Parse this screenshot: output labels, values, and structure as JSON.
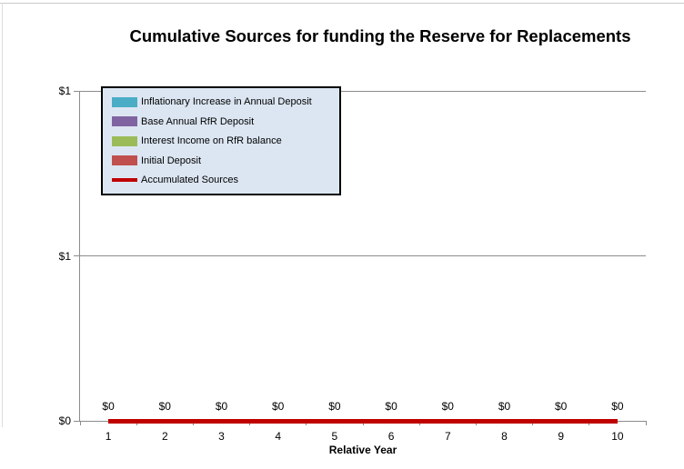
{
  "title": "Cumulative Sources for funding the Reserve for Replacements",
  "x_axis": {
    "title": "Relative Year",
    "tick_labels": [
      "1",
      "2",
      "3",
      "4",
      "5",
      "6",
      "7",
      "8",
      "9",
      "10"
    ]
  },
  "y_axis": {
    "tick_labels": [
      "$1",
      "$1",
      "$0"
    ]
  },
  "data_labels": [
    "$0",
    "$0",
    "$0",
    "$0",
    "$0",
    "$0",
    "$0",
    "$0",
    "$0",
    "$0"
  ],
  "legend": {
    "items": [
      {
        "label": "Inflationary Increase in Annual Deposit",
        "color": "#4BACC6",
        "swatch": "bar"
      },
      {
        "label": "Base Annual RfR Deposit",
        "color": "#8064A2",
        "swatch": "bar"
      },
      {
        "label": "Interest Income on RfR balance",
        "color": "#9BBB59",
        "swatch": "bar"
      },
      {
        "label": "Initial Deposit",
        "color": "#C0504D",
        "swatch": "bar"
      },
      {
        "label": "Accumulated Sources",
        "color": "#C00000",
        "swatch": "line"
      }
    ]
  },
  "colors": {
    "accumulated_line": "#C00000",
    "gridline": "#8C8C8C",
    "axis_line": "#8C8C8C",
    "legend_background": "#DCE6F2",
    "legend_border": "#000000",
    "frame_border": "#D6D6D6",
    "text": "#000000"
  },
  "chart_data": {
    "type": "line",
    "subtype": "stacked-column-with-line; all series values are zero so only the flat line at $0 is visible",
    "title": "Cumulative Sources for funding the Reserve for Replacements",
    "xlabel": "Relative Year",
    "ylabel": "",
    "categories": [
      1,
      2,
      3,
      4,
      5,
      6,
      7,
      8,
      9,
      10
    ],
    "series": [
      {
        "name": "Inflationary Increase in Annual Deposit",
        "type": "bar",
        "color": "#4BACC6",
        "values": [
          0,
          0,
          0,
          0,
          0,
          0,
          0,
          0,
          0,
          0
        ]
      },
      {
        "name": "Base Annual RfR Deposit",
        "type": "bar",
        "color": "#8064A2",
        "values": [
          0,
          0,
          0,
          0,
          0,
          0,
          0,
          0,
          0,
          0
        ]
      },
      {
        "name": "Interest Income on RfR balance",
        "type": "bar",
        "color": "#9BBB59",
        "values": [
          0,
          0,
          0,
          0,
          0,
          0,
          0,
          0,
          0,
          0
        ]
      },
      {
        "name": "Initial Deposit",
        "type": "bar",
        "color": "#C0504D",
        "values": [
          0,
          0,
          0,
          0,
          0,
          0,
          0,
          0,
          0,
          0
        ]
      },
      {
        "name": "Accumulated Sources",
        "type": "line",
        "color": "#C00000",
        "values": [
          0,
          0,
          0,
          0,
          0,
          0,
          0,
          0,
          0,
          0
        ]
      }
    ],
    "y_tick_labels_displayed": [
      "$1",
      "$1",
      "$0"
    ],
    "ylim": [
      0,
      1
    ],
    "grid": true,
    "legend_position": "inside-top-left",
    "data_label_format": "$0",
    "data_labels_series": "Accumulated Sources"
  }
}
